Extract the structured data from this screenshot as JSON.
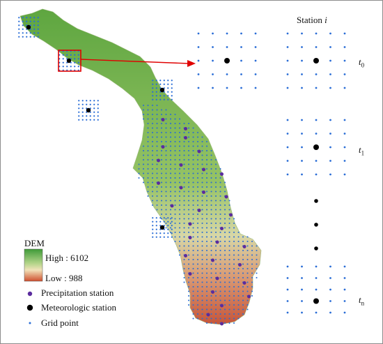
{
  "legend": {
    "title": "DEM",
    "high_label": "High : 6102",
    "low_label": "Low : 988",
    "items": [
      {
        "label": "Precipitation station",
        "symbol": "purple-dot"
      },
      {
        "label": "Meteorologic station",
        "symbol": "black-dot"
      },
      {
        "label": "Grid point",
        "symbol": "blue-small-dot"
      }
    ]
  },
  "panel": {
    "header_prefix": "Station ",
    "header_var": "i",
    "times": [
      {
        "var": "t",
        "sub": "0"
      },
      {
        "var": "t",
        "sub": "1"
      },
      {
        "var": "t",
        "sub": "n"
      }
    ]
  },
  "colors": {
    "dem_high": "#6fb24b",
    "dem_mid": "#d8d7a6",
    "dem_low": "#d2693f",
    "grid_point": "#2a6dd6",
    "precipitation_station": "#5b2c9e",
    "meteorologic_station": "#000000",
    "zoom_box": "#e00000",
    "arrow": "#e00000"
  }
}
